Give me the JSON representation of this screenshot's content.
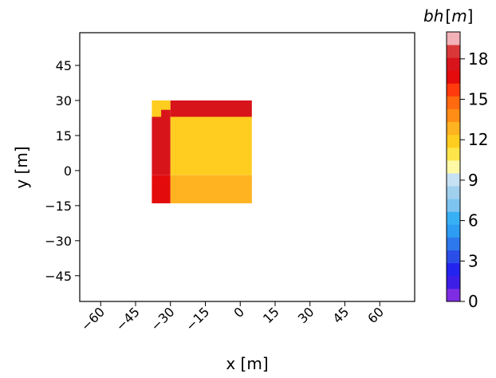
{
  "chart_data": {
    "type": "heatmap",
    "xlabel": "x [m]",
    "ylabel": "y [m]",
    "xlim": [
      -69,
      75
    ],
    "ylim": [
      -56,
      59
    ],
    "xticks": [
      "−60",
      "−45",
      "−30",
      "−15",
      "0",
      "15",
      "30",
      "45",
      "60"
    ],
    "xtick_values": [
      -60,
      -45,
      -30,
      -15,
      0,
      15,
      30,
      45,
      60
    ],
    "yticks": [
      "45",
      "30",
      "15",
      "0",
      "−15",
      "−30",
      "−45"
    ],
    "ytick_values": [
      45,
      30,
      15,
      0,
      -15,
      -30,
      -45
    ],
    "cells": [
      {
        "x0": -38,
        "x1": -30,
        "y0": 23,
        "y1": 30,
        "value": 12
      },
      {
        "x0": -30,
        "x1": 5,
        "y0": 23,
        "y1": 30,
        "value": 18
      },
      {
        "x0": -34,
        "x1": -30,
        "y0": 23,
        "y1": 26,
        "value": 18
      },
      {
        "x0": -38,
        "x1": -30,
        "y0": -2,
        "y1": 23,
        "value": 18
      },
      {
        "x0": -30,
        "x1": 5,
        "y0": -2,
        "y1": 23,
        "value": 12
      },
      {
        "x0": -38,
        "x1": -30,
        "y0": -14,
        "y1": -2,
        "value": 17
      },
      {
        "x0": -30,
        "x1": 5,
        "y0": -14,
        "y1": -2,
        "value": 13
      }
    ],
    "colorbar": {
      "label": "bh [m]",
      "label_parts": {
        "var": "bh",
        "unit": "m"
      },
      "range": [
        0,
        20
      ],
      "ticks": [
        "0",
        "3",
        "6",
        "9",
        "12",
        "15",
        "18"
      ],
      "tick_values": [
        0,
        3,
        6,
        9,
        12,
        15,
        18
      ],
      "colors": [
        "#7f2de3",
        "#3d1ee6",
        "#2424f0",
        "#2b4ee8",
        "#2d78ec",
        "#2d9cf2",
        "#38b0f5",
        "#7dc4f0",
        "#a0d0ee",
        "#c6e1f3",
        "#fff8a5",
        "#ffe54a",
        "#ffcd20",
        "#ffb320",
        "#ff8d16",
        "#ff6a10",
        "#ff3a0c",
        "#e30b0b",
        "#d8141b",
        "#da3838",
        "#f2b1b7"
      ]
    }
  }
}
